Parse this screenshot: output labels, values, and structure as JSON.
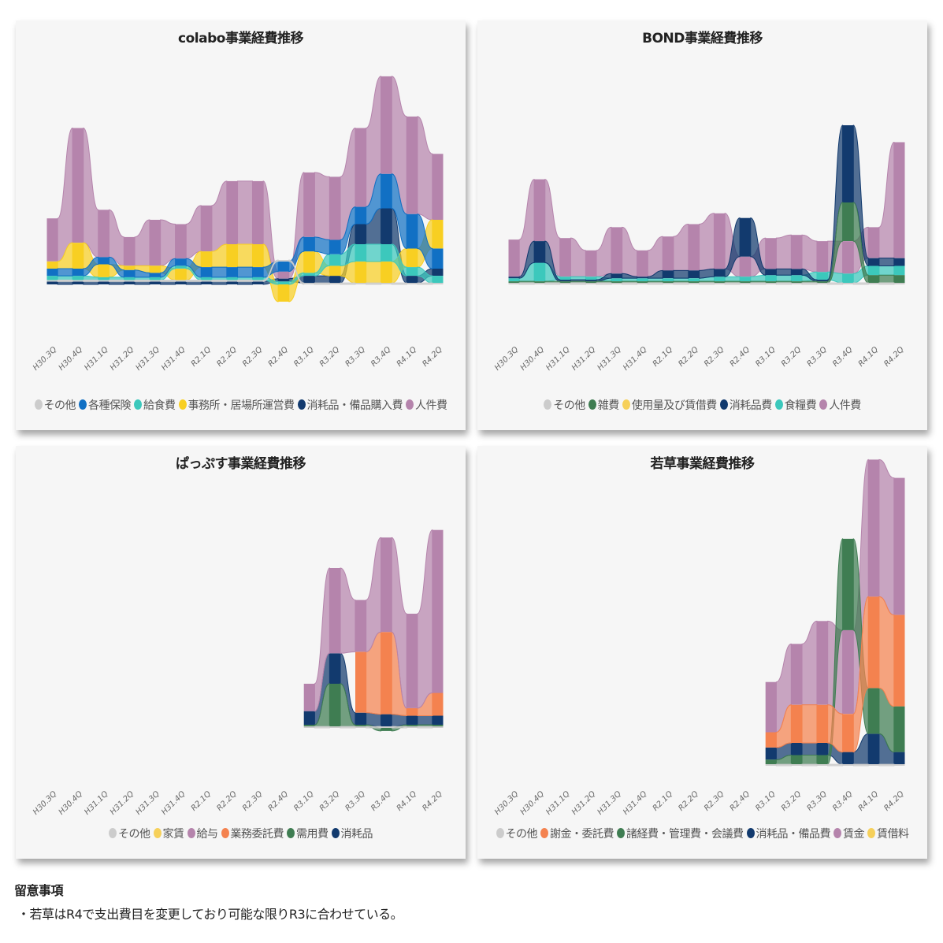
{
  "periods": [
    "H30.3Q",
    "H30.4Q",
    "H31.1Q",
    "H31.2Q",
    "H31.3Q",
    "H31.4Q",
    "R2.1Q",
    "R2.2Q",
    "R2.3Q",
    "R2.4Q",
    "R3.1Q",
    "R3.2Q",
    "R3.3Q",
    "R3.4Q",
    "R4.1Q",
    "R4.2Q"
  ],
  "colors": {
    "gray": "#cccccc",
    "blue": "#1170c4",
    "teal": "#3cc8bc",
    "yellow": "#f8cf22",
    "navy": "#123a6e",
    "purple": "#b584ac",
    "green": "#3f7d52",
    "orange": "#f4824f",
    "lightyellow": "#f6d05a"
  },
  "chart_data": [
    {
      "type": "ribbon",
      "title": "colabo事業経費推移",
      "xlabel": "",
      "ylabel": "",
      "series": [
        {
          "name": "その他",
          "color": "#cccccc",
          "values": [
            1,
            1,
            1,
            1,
            1,
            1,
            1,
            1,
            1,
            1,
            1,
            1,
            1,
            1,
            1,
            1
          ]
        },
        {
          "name": "各種保険",
          "color": "#1170c4",
          "values": [
            5,
            5,
            5,
            5,
            3,
            5,
            7,
            7,
            7,
            7,
            10,
            10,
            12,
            24,
            24,
            14
          ]
        },
        {
          "name": "給食費",
          "color": "#3cc8bc",
          "values": [
            3,
            3,
            2,
            2,
            2,
            2,
            2,
            2,
            2,
            2,
            2,
            8,
            12,
            12,
            6,
            5
          ]
        },
        {
          "name": "事務所・居場所運営費",
          "color": "#f8cf22",
          "values": [
            5,
            18,
            9,
            3,
            5,
            8,
            11,
            16,
            16,
            -12,
            15,
            7,
            15,
            15,
            13,
            20
          ]
        },
        {
          "name": "消耗品・備品購入費",
          "color": "#123a6e",
          "values": [
            2,
            2,
            2,
            2,
            2,
            2,
            2,
            2,
            2,
            2,
            5,
            5,
            14,
            25,
            5,
            5
          ]
        },
        {
          "name": "人件費",
          "color": "#b584ac",
          "values": [
            30,
            80,
            33,
            20,
            32,
            24,
            32,
            44,
            44,
            5,
            45,
            44,
            55,
            68,
            68,
            46
          ]
        }
      ],
      "order": [
        [
          "navy",
          "gray",
          "teal",
          "blue",
          "yellow",
          "purple"
        ],
        [
          "navy",
          "gray",
          "teal",
          "blue",
          "yellow",
          "purple"
        ],
        [
          "navy",
          "gray",
          "teal",
          "yellow",
          "blue",
          "purple"
        ],
        [
          "navy",
          "gray",
          "teal",
          "blue",
          "yellow",
          "purple"
        ],
        [
          "navy",
          "gray",
          "teal",
          "blue",
          "yellow",
          "purple"
        ],
        [
          "navy",
          "gray",
          "yellow",
          "teal",
          "blue",
          "purple"
        ],
        [
          "navy",
          "gray",
          "teal",
          "blue",
          "yellow",
          "purple"
        ],
        [
          "navy",
          "gray",
          "teal",
          "blue",
          "yellow",
          "purple"
        ],
        [
          "navy",
          "gray",
          "teal",
          "blue",
          "yellow",
          "purple"
        ],
        [
          "yellow",
          "teal",
          "navy",
          "purple",
          "blue",
          "gray"
        ],
        [
          "gray",
          "navy",
          "teal",
          "yellow",
          "blue",
          "purple"
        ],
        [
          "gray",
          "navy",
          "yellow",
          "teal",
          "blue",
          "purple"
        ],
        [
          "gray",
          "yellow",
          "teal",
          "navy",
          "blue",
          "purple"
        ],
        [
          "gray",
          "yellow",
          "teal",
          "navy",
          "blue",
          "purple"
        ],
        [
          "gray",
          "navy",
          "teal",
          "yellow",
          "blue",
          "purple"
        ],
        [
          "gray",
          "teal",
          "navy",
          "blue",
          "yellow",
          "purple"
        ]
      ],
      "max": 140
    },
    {
      "type": "ribbon",
      "title": "BOND事業経費推移",
      "xlabel": "",
      "ylabel": "",
      "series": [
        {
          "name": "その他",
          "color": "#cccccc",
          "values": [
            1,
            1,
            1,
            1,
            1,
            1,
            1,
            1,
            1,
            1,
            1,
            1,
            1,
            1,
            1,
            1
          ]
        },
        {
          "name": "雑費",
          "color": "#3f7d52",
          "values": [
            1,
            1,
            1,
            1,
            1,
            1,
            1,
            1,
            1,
            1,
            1,
            1,
            1,
            25,
            5,
            5
          ]
        },
        {
          "name": "使用量及び賃借費",
          "color": "#f6d05a",
          "values": [
            2,
            6,
            5,
            3,
            5,
            4,
            5,
            5,
            5,
            -4,
            7,
            7,
            7,
            35,
            20,
            20
          ]
        },
        {
          "name": "消耗品費",
          "color": "#123a6e",
          "values": [
            1,
            14,
            1,
            1,
            3,
            1,
            5,
            5,
            5,
            25,
            4,
            4,
            1,
            50,
            5,
            5
          ]
        },
        {
          "name": "食糧費",
          "color": "#3cc8bc",
          "values": [
            2,
            12,
            2,
            2,
            2,
            2,
            2,
            2,
            3,
            3,
            4,
            4,
            5,
            6,
            6,
            6
          ]
        },
        {
          "name": "人件費",
          "color": "#b584ac",
          "values": [
            24,
            40,
            25,
            17,
            30,
            17,
            22,
            30,
            36,
            13,
            20,
            22,
            20,
            21,
            20,
            75
          ]
        }
      ],
      "order": [
        [
          "gray",
          "green",
          "teal",
          "navy",
          "yellow",
          "purple"
        ],
        [
          "gray",
          "green",
          "yellow",
          "teal",
          "navy",
          "purple"
        ],
        [
          "gray",
          "green",
          "navy",
          "teal",
          "yellow",
          "purple"
        ],
        [
          "gray",
          "green",
          "navy",
          "teal",
          "yellow",
          "purple"
        ],
        [
          "gray",
          "green",
          "teal",
          "navy",
          "yellow",
          "purple"
        ],
        [
          "gray",
          "green",
          "teal",
          "navy",
          "yellow",
          "purple"
        ],
        [
          "gray",
          "green",
          "teal",
          "navy",
          "yellow",
          "purple"
        ],
        [
          "gray",
          "green",
          "teal",
          "navy",
          "yellow",
          "purple"
        ],
        [
          "gray",
          "green",
          "teal",
          "navy",
          "yellow",
          "purple"
        ],
        [
          "yellow",
          "gray",
          "green",
          "teal",
          "purple",
          "navy"
        ],
        [
          "gray",
          "green",
          "teal",
          "navy",
          "yellow",
          "purple"
        ],
        [
          "gray",
          "green",
          "teal",
          "navy",
          "yellow",
          "purple"
        ],
        [
          "gray",
          "green",
          "navy",
          "teal",
          "yellow",
          "purple"
        ],
        [
          "gray",
          "teal",
          "purple",
          "green",
          "yellow",
          "navy"
        ],
        [
          "gray",
          "green",
          "teal",
          "navy",
          "purple",
          "yellow"
        ],
        [
          "gray",
          "green",
          "teal",
          "navy",
          "yellow",
          "purple"
        ]
      ],
      "max": 130
    },
    {
      "type": "ribbon",
      "title": "ぱっぷす事業経費推移",
      "xlabel": "",
      "ylabel": "",
      "series": [
        {
          "name": "その他",
          "color": "#cccccc",
          "values": [
            0,
            0,
            0,
            0,
            0,
            0,
            0,
            0,
            0,
            0,
            1,
            1,
            1,
            1,
            1,
            1
          ]
        },
        {
          "name": "家賃",
          "color": "#f6d05a",
          "values": [
            0,
            0,
            0,
            0,
            0,
            0,
            0,
            0,
            0,
            0,
            0,
            8,
            12,
            12,
            10,
            10
          ]
        },
        {
          "name": "給与",
          "color": "#b584ac",
          "values": [
            0,
            0,
            0,
            0,
            0,
            0,
            0,
            0,
            0,
            0,
            18,
            56,
            34,
            62,
            62,
            107
          ]
        },
        {
          "name": "業務委託費",
          "color": "#f4824f",
          "values": [
            0,
            0,
            0,
            0,
            0,
            0,
            0,
            0,
            0,
            0,
            0,
            0,
            40,
            54,
            5,
            15
          ]
        },
        {
          "name": "需用費",
          "color": "#3f7d52",
          "values": [
            0,
            0,
            0,
            0,
            0,
            0,
            0,
            0,
            0,
            0,
            1,
            28,
            1,
            -2,
            1,
            1
          ]
        },
        {
          "name": "消耗品",
          "color": "#123a6e",
          "values": [
            0,
            0,
            0,
            0,
            0,
            0,
            0,
            0,
            0,
            0,
            9,
            20,
            8,
            8,
            6,
            6
          ]
        }
      ],
      "order": [
        [
          "gray",
          "yellow",
          "orange",
          "green",
          "navy",
          "purple"
        ],
        [
          "gray",
          "yellow",
          "orange",
          "green",
          "navy",
          "purple"
        ],
        [
          "gray",
          "yellow",
          "orange",
          "green",
          "navy",
          "purple"
        ],
        [
          "gray",
          "yellow",
          "orange",
          "green",
          "navy",
          "purple"
        ],
        [
          "gray",
          "yellow",
          "orange",
          "green",
          "navy",
          "purple"
        ],
        [
          "gray",
          "yellow",
          "orange",
          "green",
          "navy",
          "purple"
        ],
        [
          "gray",
          "yellow",
          "orange",
          "green",
          "navy",
          "purple"
        ],
        [
          "gray",
          "yellow",
          "orange",
          "green",
          "navy",
          "purple"
        ],
        [
          "gray",
          "yellow",
          "orange",
          "green",
          "navy",
          "purple"
        ],
        [
          "gray",
          "yellow",
          "orange",
          "green",
          "navy",
          "purple"
        ],
        [
          "gray",
          "green",
          "yellow",
          "orange",
          "navy",
          "purple"
        ],
        [
          "gray",
          "yellow",
          "green",
          "navy",
          "orange",
          "purple"
        ],
        [
          "gray",
          "green",
          "navy",
          "yellow",
          "orange",
          "purple"
        ],
        [
          "green",
          "gray",
          "navy",
          "yellow",
          "orange",
          "purple"
        ],
        [
          "gray",
          "green",
          "navy",
          "orange",
          "yellow",
          "purple"
        ],
        [
          "gray",
          "green",
          "navy",
          "yellow",
          "orange",
          "purple"
        ]
      ],
      "max": 150
    },
    {
      "type": "ribbon",
      "title": "若草事業経費推移",
      "xlabel": "",
      "ylabel": "",
      "series": [
        {
          "name": "その他",
          "color": "#cccccc",
          "values": [
            0,
            0,
            0,
            0,
            0,
            0,
            0,
            0,
            0,
            0,
            1,
            1,
            1,
            1,
            1,
            1
          ]
        },
        {
          "name": "謝金・委託費",
          "color": "#f4824f",
          "values": [
            0,
            0,
            0,
            0,
            0,
            0,
            0,
            0,
            0,
            0,
            10,
            25,
            25,
            25,
            60,
            60
          ]
        },
        {
          "name": "諸経費・管理費・会議費",
          "color": "#3f7d52",
          "values": [
            0,
            0,
            0,
            0,
            0,
            0,
            0,
            0,
            0,
            0,
            3,
            6,
            6,
            60,
            30,
            30
          ]
        },
        {
          "name": "消耗品・備品費",
          "color": "#123a6e",
          "values": [
            0,
            0,
            0,
            0,
            0,
            0,
            0,
            0,
            0,
            0,
            8,
            8,
            8,
            8,
            20,
            8
          ]
        },
        {
          "name": "賃金",
          "color": "#b584ac",
          "values": [
            0,
            0,
            0,
            0,
            0,
            0,
            0,
            0,
            0,
            0,
            33,
            40,
            55,
            55,
            90,
            90
          ]
        },
        {
          "name": "賃借料",
          "color": "#f6d05a",
          "values": [
            0,
            0,
            0,
            0,
            0,
            0,
            0,
            0,
            0,
            0,
            17,
            25,
            25,
            25,
            45,
            30
          ]
        }
      ],
      "order": [
        [
          "gray",
          "green",
          "navy",
          "yellow",
          "orange",
          "purple"
        ],
        [
          "gray",
          "green",
          "navy",
          "yellow",
          "orange",
          "purple"
        ],
        [
          "gray",
          "green",
          "navy",
          "yellow",
          "orange",
          "purple"
        ],
        [
          "gray",
          "green",
          "navy",
          "yellow",
          "orange",
          "purple"
        ],
        [
          "gray",
          "green",
          "navy",
          "yellow",
          "orange",
          "purple"
        ],
        [
          "gray",
          "green",
          "navy",
          "yellow",
          "orange",
          "purple"
        ],
        [
          "gray",
          "green",
          "navy",
          "yellow",
          "orange",
          "purple"
        ],
        [
          "gray",
          "green",
          "navy",
          "yellow",
          "orange",
          "purple"
        ],
        [
          "gray",
          "green",
          "navy",
          "yellow",
          "orange",
          "purple"
        ],
        [
          "gray",
          "green",
          "navy",
          "yellow",
          "orange",
          "purple"
        ],
        [
          "gray",
          "green",
          "navy",
          "yellow",
          "orange",
          "purple"
        ],
        [
          "gray",
          "green",
          "navy",
          "yellow",
          "orange",
          "purple"
        ],
        [
          "gray",
          "green",
          "navy",
          "yellow",
          "orange",
          "purple"
        ],
        [
          "gray",
          "navy",
          "yellow",
          "orange",
          "purple",
          "green"
        ],
        [
          "gray",
          "navy",
          "green",
          "yellow",
          "orange",
          "purple"
        ],
        [
          "gray",
          "navy",
          "yellow",
          "green",
          "orange",
          "purple"
        ]
      ],
      "max": 150
    }
  ],
  "notes": {
    "title": "留意事項",
    "items": [
      "・若草はR4で支出費目を変更しており可能な限りR3に合わせている。"
    ]
  }
}
